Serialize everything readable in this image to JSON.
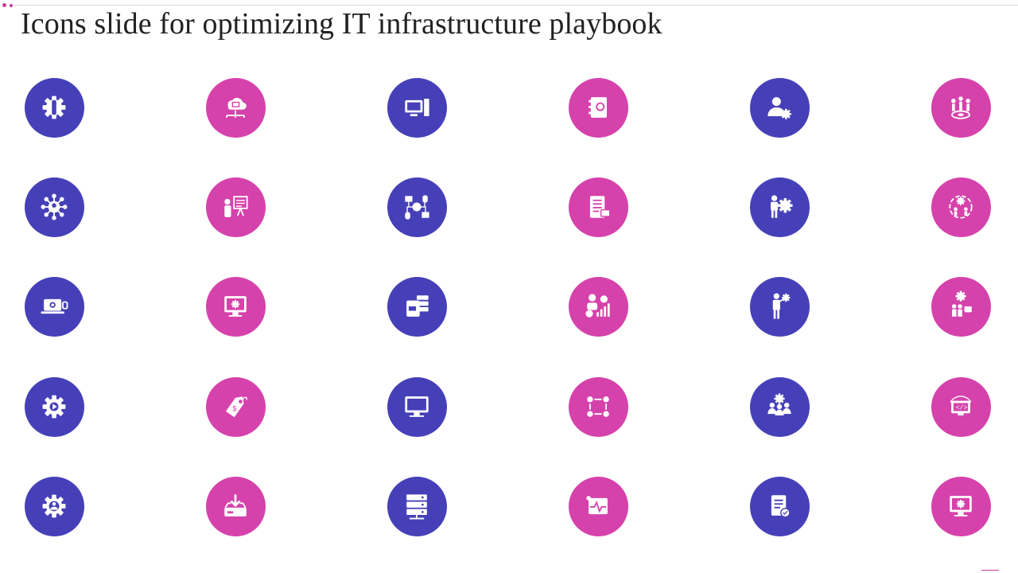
{
  "slide": {
    "title": "Icons slide for optimizing IT infrastructure playbook"
  },
  "colors": {
    "blue": "#4640b8",
    "pink": "#d642ab",
    "icon": "#ffffff"
  },
  "icons": [
    {
      "name": "gear-wrench-icon",
      "color": "blue"
    },
    {
      "name": "cloud-network-icon",
      "color": "pink"
    },
    {
      "name": "computer-setup-icon",
      "color": "blue"
    },
    {
      "name": "notebook-chat-icon",
      "color": "pink"
    },
    {
      "name": "user-settings-icon",
      "color": "blue"
    },
    {
      "name": "team-target-icon",
      "color": "pink"
    },
    {
      "name": "network-hub-user-icon",
      "color": "blue"
    },
    {
      "name": "presentation-board-icon",
      "color": "pink"
    },
    {
      "name": "global-network-devices-icon",
      "color": "blue"
    },
    {
      "name": "checklist-report-icon",
      "color": "pink"
    },
    {
      "name": "person-gear-icon",
      "color": "blue"
    },
    {
      "name": "cycle-team-icon",
      "color": "pink"
    },
    {
      "name": "laptop-gear-icon",
      "color": "blue"
    },
    {
      "name": "monitor-gear-icon",
      "color": "pink"
    },
    {
      "name": "data-server-icon",
      "color": "blue"
    },
    {
      "name": "analyst-growth-icon",
      "color": "pink"
    },
    {
      "name": "businessman-idea-gear-icon",
      "color": "blue"
    },
    {
      "name": "team-collaboration-gear-icon",
      "color": "pink"
    },
    {
      "name": "gear-play-icon",
      "color": "blue"
    },
    {
      "name": "price-tag-icon",
      "color": "pink"
    },
    {
      "name": "desktop-monitor-icon",
      "color": "blue"
    },
    {
      "name": "workflow-nodes-icon",
      "color": "pink"
    },
    {
      "name": "team-gear-icon",
      "color": "blue"
    },
    {
      "name": "code-monitor-icon",
      "color": "pink"
    },
    {
      "name": "gear-user-icon",
      "color": "blue"
    },
    {
      "name": "download-tray-icon",
      "color": "pink"
    },
    {
      "name": "server-rack-icon",
      "color": "blue"
    },
    {
      "name": "pulse-monitor-icon",
      "color": "pink"
    },
    {
      "name": "document-approved-icon",
      "color": "blue"
    },
    {
      "name": "monitor-settings-icon",
      "color": "pink"
    }
  ]
}
